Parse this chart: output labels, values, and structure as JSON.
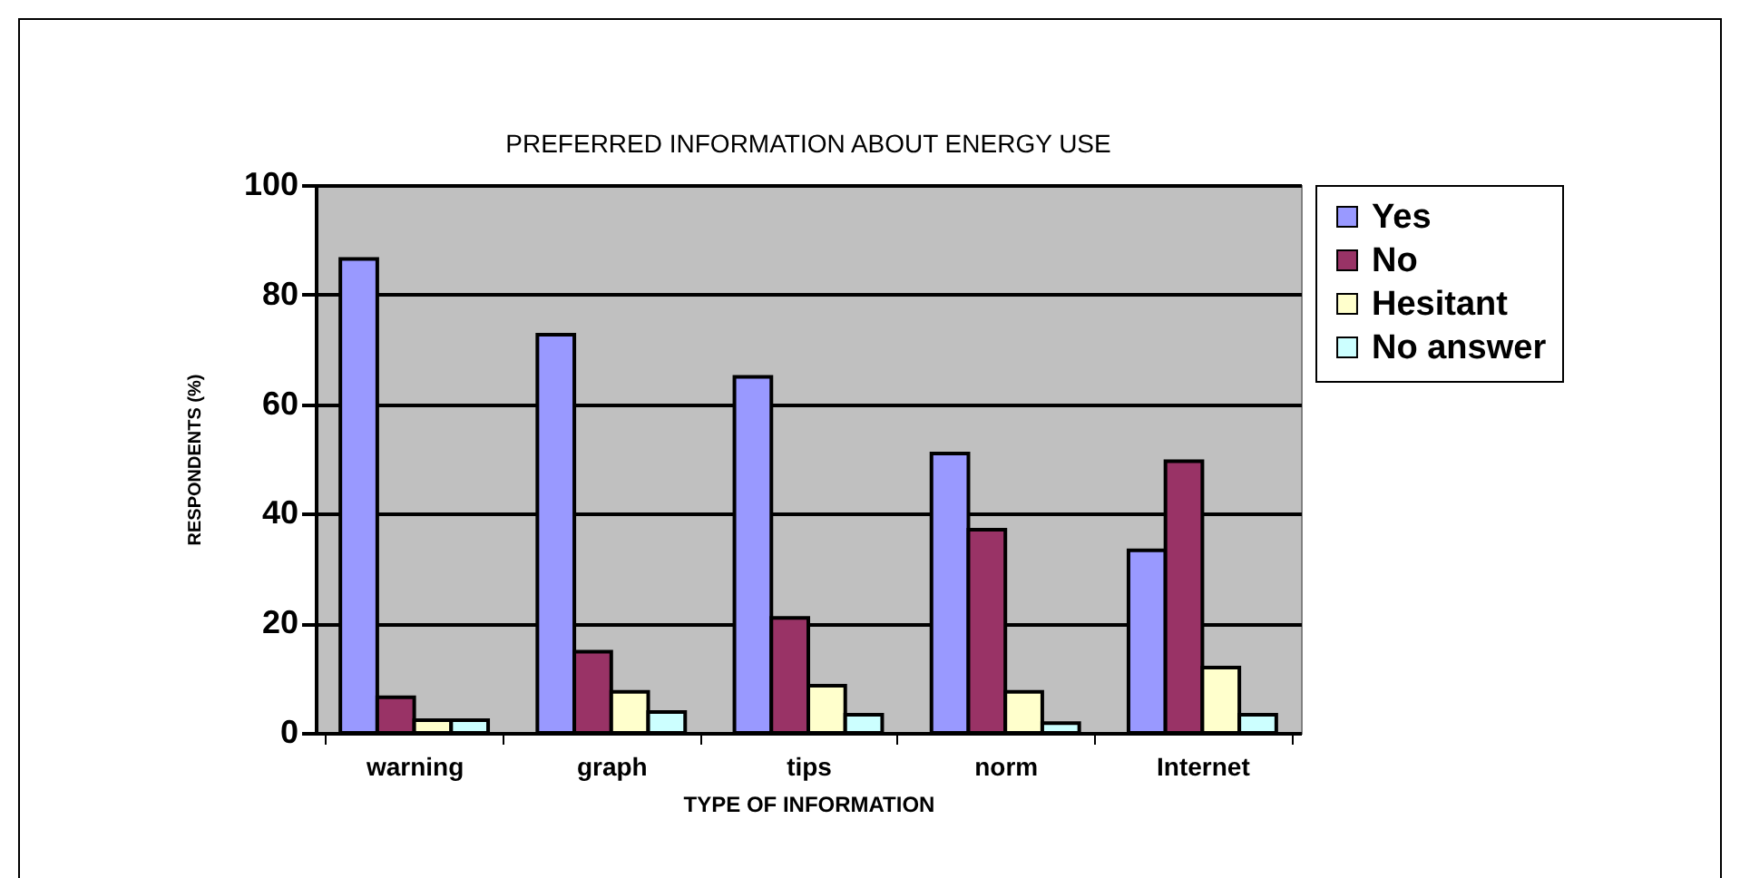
{
  "chart_data": {
    "type": "bar",
    "title": "PREFERRED INFORMATION ABOUT ENERGY USE",
    "xlabel": "TYPE OF INFORMATION",
    "ylabel": "RESPONDENTS (%)",
    "categories": [
      "warning",
      "graph",
      "tips",
      "norm",
      "Internet"
    ],
    "series": [
      {
        "name": "Yes",
        "color": "#9999ff",
        "values": [
          86.5,
          72.7,
          65,
          51,
          33.3
        ]
      },
      {
        "name": "No",
        "color": "#993366",
        "values": [
          6.5,
          14.8,
          21,
          37.1,
          49.6
        ]
      },
      {
        "name": "Hesitant",
        "color": "#ffffcc",
        "values": [
          2.3,
          7.5,
          8.6,
          7.5,
          11.9
        ]
      },
      {
        "name": "No answer",
        "color": "#ccffff",
        "values": [
          2.3,
          3.8,
          3.3,
          1.8,
          3.3
        ]
      }
    ],
    "ylim": [
      0,
      100
    ],
    "yticks": [
      0,
      20,
      40,
      60,
      80,
      100
    ],
    "grid": "y",
    "legend": "right"
  }
}
